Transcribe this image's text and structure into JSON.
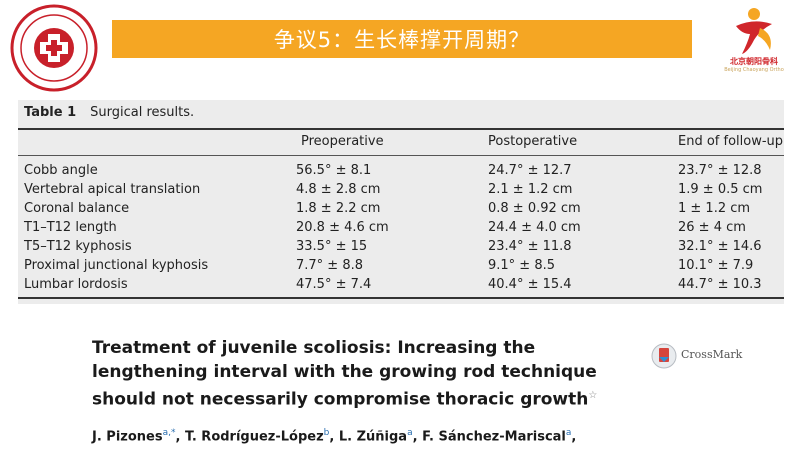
{
  "banner": {
    "title": "争议5：生长棒撑开周期？"
  },
  "logo_right": {
    "name": "北京朝阳骨科",
    "sub": "Beijing Chaoyang Ortho"
  },
  "table": {
    "label": "Table 1",
    "caption": "Surgical results.",
    "headers": [
      "Preoperative",
      "Postoperative",
      "End of follow-up"
    ],
    "rows": [
      {
        "label": "Cobb angle",
        "values": [
          "56.5° ± 8.1",
          "24.7° ± 12.7",
          "23.7° ± 12.8"
        ]
      },
      {
        "label": "Vertebral apical translation",
        "values": [
          "4.8 ± 2.8 cm",
          "2.1 ± 1.2 cm",
          "1.9 ± 0.5 cm"
        ]
      },
      {
        "label": "Coronal balance",
        "values": [
          "1.8 ± 2.2 cm",
          "0.8 ± 0.92 cm",
          "1 ± 1.2 cm"
        ]
      },
      {
        "label": "T1–T12 length",
        "values": [
          "20.8 ± 4.6 cm",
          "24.4 ± 4.0 cm",
          "26 ± 4 cm"
        ]
      },
      {
        "label": "T5–T12 kyphosis",
        "values": [
          "33.5° ± 15",
          "23.4° ± 11.8",
          "32.1° ± 14.6"
        ]
      },
      {
        "label": "Proximal junctional kyphosis",
        "values": [
          "7.7° ± 8.8",
          "9.1° ± 8.5",
          "10.1° ± 7.9"
        ]
      },
      {
        "label": "Lumbar lordosis",
        "values": [
          "47.5° ± 7.4",
          "40.4° ± 15.4",
          "44.7° ± 10.3"
        ]
      }
    ]
  },
  "paper": {
    "title_line1": "Treatment of juvenile scoliosis: Increasing the",
    "title_line2": "lengthening interval with the growing rod technique",
    "title_line3": "should not necessarily compromise thoracic growth",
    "title_mark": "☆",
    "crossmark": "CrossMark",
    "authors": [
      {
        "name": "J. Pizones",
        "sup": "a,*"
      },
      {
        "name": "T. Rodríguez-López",
        "sup": "b"
      },
      {
        "name": "L. Zúñiga",
        "sup": "a"
      },
      {
        "name": "F. Sánchez-Mariscal",
        "sup": "a"
      }
    ]
  }
}
